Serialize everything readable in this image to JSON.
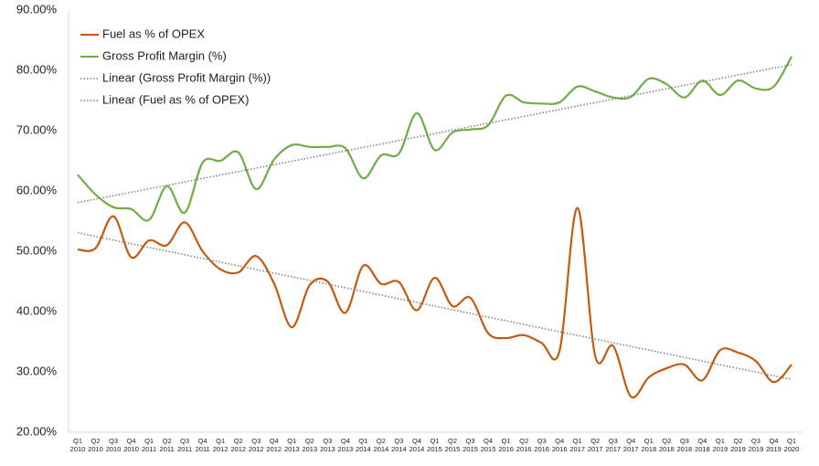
{
  "chart_data": {
    "type": "line",
    "categories": [
      "Q1 2010",
      "Q2 2010",
      "Q3 2010",
      "Q4 2010",
      "Q1 2011",
      "Q2 2011",
      "Q3 2011",
      "Q4 2011",
      "Q1 2012",
      "Q2 2012",
      "Q3 2012",
      "Q4 2012",
      "Q1 2013",
      "Q2 2013",
      "Q3 2013",
      "Q4 2013",
      "Q1 2014",
      "Q2 2014",
      "Q3 2014",
      "Q4 2014",
      "Q1 2015",
      "Q2 2015",
      "Q3 2015",
      "Q4 2015",
      "Q1 2016",
      "Q2 2016",
      "Q3 2016",
      "Q4 2016",
      "Q1 2017",
      "Q2 2017",
      "Q3 2017",
      "Q4 2017",
      "Q1 2018",
      "Q2 2018",
      "Q3 2018",
      "Q4 2018",
      "Q1 2019",
      "Q2 2019",
      "Q3 2019",
      "Q4 2019",
      "Q1 2020"
    ],
    "series": [
      {
        "name": "Fuel as % of OPEX",
        "color": "#c55a11",
        "values": [
          50.3,
          50.5,
          55.8,
          49,
          51.8,
          51,
          54.8,
          50,
          47,
          46.5,
          49.2,
          44.7,
          37.4,
          44.4,
          45,
          39.8,
          47.6,
          44.6,
          44.9,
          40.2,
          45.6,
          40.9,
          42.3,
          36.4,
          35.6,
          36.1,
          34.8,
          33.5,
          57.2,
          32.6,
          34.3,
          25.9,
          29.1,
          30.6,
          31.2,
          28.6,
          33.6,
          33.2,
          31.8,
          28.3,
          31.2
        ],
        "trendline": {
          "name": "Linear (Fuel as % of OPEX)",
          "color": "#7f7f7f"
        }
      },
      {
        "name": "Gross Profit Margin (%)",
        "color": "#70ad47",
        "values": [
          62.7,
          59.4,
          57.3,
          57,
          55.2,
          60.8,
          56.4,
          64.7,
          65,
          66.4,
          60.3,
          65.2,
          67.6,
          67.3,
          67.3,
          67.1,
          62.1,
          65.9,
          66.2,
          72.9,
          66.8,
          69.7,
          70.2,
          70.9,
          75.8,
          74.7,
          74.5,
          74.7,
          77.3,
          76.5,
          75.5,
          75.6,
          78.6,
          77.7,
          75.5,
          78.3,
          75.9,
          78.3,
          77,
          77.3,
          82.3
        ],
        "trendline": {
          "name": "Linear (Gross Profit Margin (%))",
          "color": "#7f7f7f"
        }
      }
    ],
    "ylim": [
      20,
      90
    ],
    "yticks": [
      {
        "value": 20,
        "label": "20.00%"
      },
      {
        "value": 30,
        "label": "30.00%"
      },
      {
        "value": 40,
        "label": "40.00%"
      },
      {
        "value": 50,
        "label": "50.00%"
      },
      {
        "value": 60,
        "label": "60.00%"
      },
      {
        "value": 70,
        "label": "70.00%"
      },
      {
        "value": 80,
        "label": "80.00%"
      },
      {
        "value": 90,
        "label": "90.00%"
      }
    ],
    "grid": false,
    "legend": "top-left"
  }
}
